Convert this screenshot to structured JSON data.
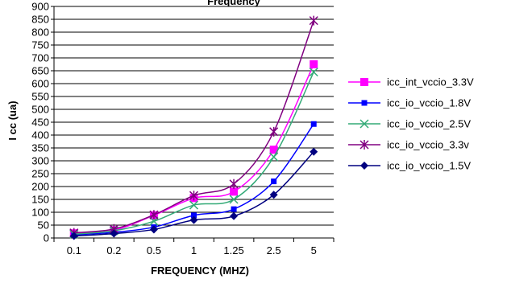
{
  "chart_data": {
    "type": "line",
    "title": "Frequency",
    "xlabel": "FREQUENCY (MHZ)",
    "ylabel": "I cc (ua)",
    "categories": [
      "0.1",
      "0.2",
      "0.5",
      "1",
      "1.25",
      "2.5",
      "5"
    ],
    "ylim": [
      0,
      900
    ],
    "yticks": [
      0,
      50,
      100,
      150,
      200,
      250,
      300,
      350,
      400,
      450,
      500,
      550,
      600,
      650,
      700,
      750,
      800,
      850,
      900
    ],
    "grid": "horizontal",
    "legend_position": "right",
    "series": [
      {
        "name": "icc_int_vccio_3.3V",
        "color": "#ff00ff",
        "marker": "square-large",
        "values": [
          18,
          30,
          88,
          155,
          180,
          343,
          675
        ]
      },
      {
        "name": "icc_io_vccio_1.8V",
        "color": "#0000ff",
        "marker": "square-small",
        "values": [
          12,
          22,
          42,
          88,
          112,
          220,
          443
        ]
      },
      {
        "name": "icc_io_vccio_2.5V",
        "color": "#33aa77",
        "marker": "x",
        "values": [
          15,
          28,
          65,
          128,
          150,
          315,
          645
        ]
      },
      {
        "name": "icc_io_vccio_3.3v",
        "color": "#800080",
        "marker": "star",
        "values": [
          20,
          35,
          90,
          165,
          210,
          413,
          845
        ]
      },
      {
        "name": "icc_io_vccio_1.5V",
        "color": "#000080",
        "marker": "diamond",
        "values": [
          8,
          17,
          33,
          70,
          85,
          168,
          335
        ]
      }
    ]
  }
}
